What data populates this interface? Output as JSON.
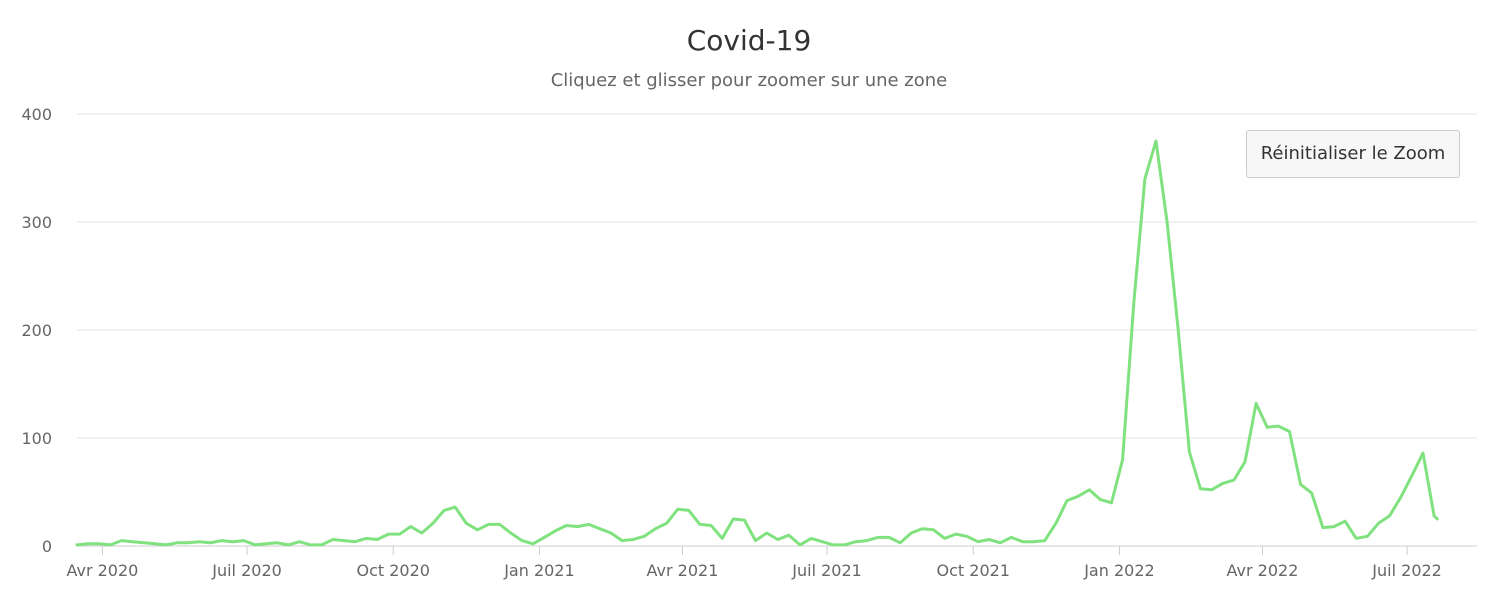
{
  "chart_data": {
    "type": "line",
    "title": "Covid-19",
    "subtitle": "Cliquez et glisser pour zoomer sur une zone",
    "xlabel": "",
    "ylabel": "",
    "ylim": [
      0,
      400
    ],
    "yticks": [
      0,
      100,
      200,
      300,
      400
    ],
    "xlim": [
      "2020-03-16",
      "2022-08-14"
    ],
    "x_ticks": [
      {
        "date": "2020-04-01",
        "label": "Avr 2020"
      },
      {
        "date": "2020-07-01",
        "label": "Juil 2020"
      },
      {
        "date": "2020-10-01",
        "label": "Oct 2020"
      },
      {
        "date": "2021-01-01",
        "label": "Jan 2021"
      },
      {
        "date": "2021-04-01",
        "label": "Avr 2021"
      },
      {
        "date": "2021-07-01",
        "label": "Juil 2021"
      },
      {
        "date": "2021-10-01",
        "label": "Oct 2021"
      },
      {
        "date": "2022-01-01",
        "label": "Jan 2022"
      },
      {
        "date": "2022-04-01",
        "label": "Avr 2022"
      },
      {
        "date": "2022-07-01",
        "label": "Juil 2022"
      }
    ],
    "grid": true,
    "legend": "none",
    "series_color": "#80e27e",
    "series": [
      {
        "points": [
          [
            "2020-03-16",
            1
          ],
          [
            "2020-03-23",
            2
          ],
          [
            "2020-03-30",
            2
          ],
          [
            "2020-04-06",
            1
          ],
          [
            "2020-04-13",
            5
          ],
          [
            "2020-04-20",
            4
          ],
          [
            "2020-04-27",
            3
          ],
          [
            "2020-05-04",
            2
          ],
          [
            "2020-05-11",
            1
          ],
          [
            "2020-05-18",
            3
          ],
          [
            "2020-05-25",
            3
          ],
          [
            "2020-06-01",
            4
          ],
          [
            "2020-06-08",
            3
          ],
          [
            "2020-06-15",
            5
          ],
          [
            "2020-06-22",
            4
          ],
          [
            "2020-06-29",
            5
          ],
          [
            "2020-07-06",
            1
          ],
          [
            "2020-07-13",
            2
          ],
          [
            "2020-07-20",
            3
          ],
          [
            "2020-07-27",
            1
          ],
          [
            "2020-08-03",
            4
          ],
          [
            "2020-08-10",
            1
          ],
          [
            "2020-08-17",
            1
          ],
          [
            "2020-08-24",
            6
          ],
          [
            "2020-08-31",
            5
          ],
          [
            "2020-09-07",
            4
          ],
          [
            "2020-09-14",
            7
          ],
          [
            "2020-09-21",
            6
          ],
          [
            "2020-09-28",
            11
          ],
          [
            "2020-10-05",
            11
          ],
          [
            "2020-10-12",
            18
          ],
          [
            "2020-10-19",
            12
          ],
          [
            "2020-10-26",
            21
          ],
          [
            "2020-11-02",
            33
          ],
          [
            "2020-11-09",
            36
          ],
          [
            "2020-11-16",
            21
          ],
          [
            "2020-11-23",
            15
          ],
          [
            "2020-11-30",
            20
          ],
          [
            "2020-12-07",
            20
          ],
          [
            "2020-12-14",
            12
          ],
          [
            "2020-12-21",
            5
          ],
          [
            "2020-12-28",
            2
          ],
          [
            "2021-01-04",
            8
          ],
          [
            "2021-01-11",
            14
          ],
          [
            "2021-01-18",
            19
          ],
          [
            "2021-01-25",
            18
          ],
          [
            "2021-02-01",
            20
          ],
          [
            "2021-02-08",
            16
          ],
          [
            "2021-02-15",
            12
          ],
          [
            "2021-02-22",
            5
          ],
          [
            "2021-03-01",
            6
          ],
          [
            "2021-03-08",
            9
          ],
          [
            "2021-03-15",
            16
          ],
          [
            "2021-03-22",
            21
          ],
          [
            "2021-03-29",
            34
          ],
          [
            "2021-04-05",
            33
          ],
          [
            "2021-04-12",
            20
          ],
          [
            "2021-04-19",
            19
          ],
          [
            "2021-04-26",
            7
          ],
          [
            "2021-05-03",
            25
          ],
          [
            "2021-05-10",
            24
          ],
          [
            "2021-05-17",
            5
          ],
          [
            "2021-05-24",
            12
          ],
          [
            "2021-05-31",
            6
          ],
          [
            "2021-06-07",
            10
          ],
          [
            "2021-06-14",
            1
          ],
          [
            "2021-06-21",
            7
          ],
          [
            "2021-06-28",
            4
          ],
          [
            "2021-07-05",
            1
          ],
          [
            "2021-07-12",
            1
          ],
          [
            "2021-07-19",
            4
          ],
          [
            "2021-07-26",
            5
          ],
          [
            "2021-08-02",
            8
          ],
          [
            "2021-08-09",
            8
          ],
          [
            "2021-08-16",
            3
          ],
          [
            "2021-08-23",
            12
          ],
          [
            "2021-08-30",
            16
          ],
          [
            "2021-09-06",
            15
          ],
          [
            "2021-09-13",
            7
          ],
          [
            "2021-09-20",
            11
          ],
          [
            "2021-09-27",
            9
          ],
          [
            "2021-10-04",
            4
          ],
          [
            "2021-10-11",
            6
          ],
          [
            "2021-10-18",
            3
          ],
          [
            "2021-10-25",
            8
          ],
          [
            "2021-11-01",
            4
          ],
          [
            "2021-11-08",
            4
          ],
          [
            "2021-11-15",
            5
          ],
          [
            "2021-11-22",
            21
          ],
          [
            "2021-11-29",
            42
          ],
          [
            "2021-12-06",
            46
          ],
          [
            "2021-12-13",
            52
          ],
          [
            "2021-12-20",
            43
          ],
          [
            "2021-12-27",
            40
          ],
          [
            "2022-01-03",
            80
          ],
          [
            "2022-01-10",
            225
          ],
          [
            "2022-01-17",
            340
          ],
          [
            "2022-01-24",
            375
          ],
          [
            "2022-01-31",
            300
          ],
          [
            "2022-02-07",
            200
          ],
          [
            "2022-02-14",
            87
          ],
          [
            "2022-02-21",
            53
          ],
          [
            "2022-02-28",
            52
          ],
          [
            "2022-03-07",
            58
          ],
          [
            "2022-03-14",
            61
          ],
          [
            "2022-03-21",
            78
          ],
          [
            "2022-03-28",
            132
          ],
          [
            "2022-04-04",
            110
          ],
          [
            "2022-04-11",
            111
          ],
          [
            "2022-04-18",
            106
          ],
          [
            "2022-04-25",
            57
          ],
          [
            "2022-05-02",
            49
          ],
          [
            "2022-05-09",
            17
          ],
          [
            "2022-05-16",
            18
          ],
          [
            "2022-05-23",
            23
          ],
          [
            "2022-05-30",
            7
          ],
          [
            "2022-06-06",
            9
          ],
          [
            "2022-06-13",
            21
          ],
          [
            "2022-06-20",
            28
          ],
          [
            "2022-06-27",
            45
          ],
          [
            "2022-07-04",
            65
          ],
          [
            "2022-07-11",
            86
          ],
          [
            "2022-07-18",
            28
          ],
          [
            "2022-07-20",
            25
          ]
        ]
      }
    ]
  },
  "reset_zoom": {
    "label": "Réinitialiser le Zoom"
  },
  "colors": {
    "line": "#80e27e",
    "grid": "#e6e6e6",
    "axis_text": "#666666",
    "title": "#333333",
    "button_bg": "#f7f7f7",
    "button_border": "#cccccc"
  }
}
